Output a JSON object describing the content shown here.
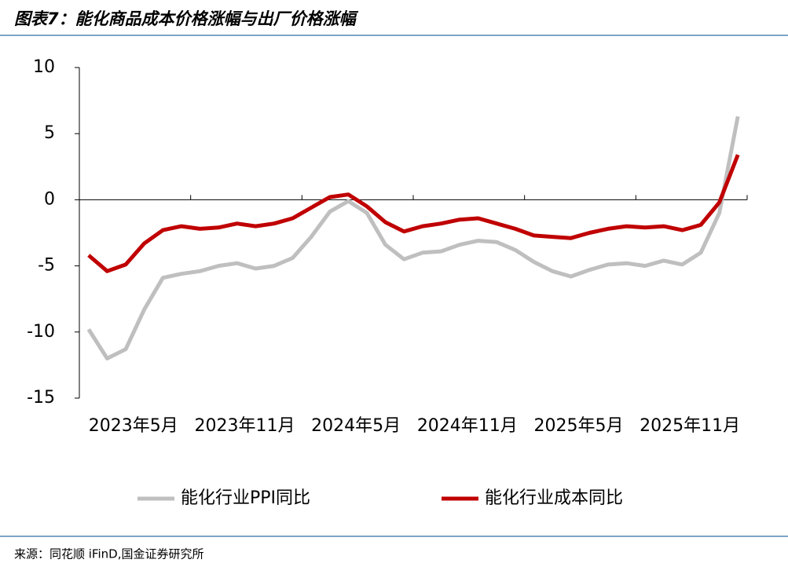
{
  "chart_data": {
    "type": "line",
    "title": "图表7：能化商品成本价格涨幅与出厂价格涨幅",
    "source": "来源：同花顺 iFinD,国金证券研究所",
    "categories": [
      "2023年5月",
      null,
      null,
      null,
      null,
      null,
      "2023年11月",
      null,
      null,
      null,
      null,
      null,
      "2024年5月",
      null,
      null,
      null,
      null,
      null,
      "2024年11月",
      null,
      null,
      null,
      null,
      null,
      "2025年5月",
      null,
      null,
      null,
      null,
      null,
      "2025年11月",
      null,
      null,
      null,
      null,
      null
    ],
    "series": [
      {
        "name": "能化行业PPI同比",
        "color": "#bfbfbf",
        "values": [
          -9.8,
          -12.0,
          -11.3,
          -8.3,
          -5.9,
          -5.6,
          -5.4,
          -5.0,
          -4.8,
          -5.2,
          -5.0,
          -4.4,
          -2.8,
          -0.9,
          -0.1,
          -1.0,
          -3.4,
          -4.5,
          -4.0,
          -3.9,
          -3.4,
          -3.1,
          -3.2,
          -3.8,
          -4.7,
          -5.4,
          -5.8,
          -5.3,
          -4.9,
          -4.8,
          -5.0,
          -4.6,
          -4.9,
          -4.0,
          -1.0,
          6.3
        ]
      },
      {
        "name": "能化行业成本同比",
        "color": "#c00000",
        "values": [
          -4.2,
          -5.4,
          -4.9,
          -3.3,
          -2.3,
          -2.0,
          -2.2,
          -2.1,
          -1.8,
          -2.0,
          -1.8,
          -1.4,
          -0.6,
          0.2,
          0.4,
          -0.5,
          -1.7,
          -2.4,
          -2.0,
          -1.8,
          -1.5,
          -1.4,
          -1.8,
          -2.2,
          -2.7,
          -2.8,
          -2.9,
          -2.5,
          -2.2,
          -2.0,
          -2.1,
          -2.0,
          -2.3,
          -1.9,
          -0.2,
          3.4
        ]
      }
    ],
    "ylim": [
      -15,
      10
    ],
    "yticks": [
      -15,
      -10,
      -5,
      0,
      5,
      10
    ],
    "grid": false,
    "legend": "bottom"
  }
}
